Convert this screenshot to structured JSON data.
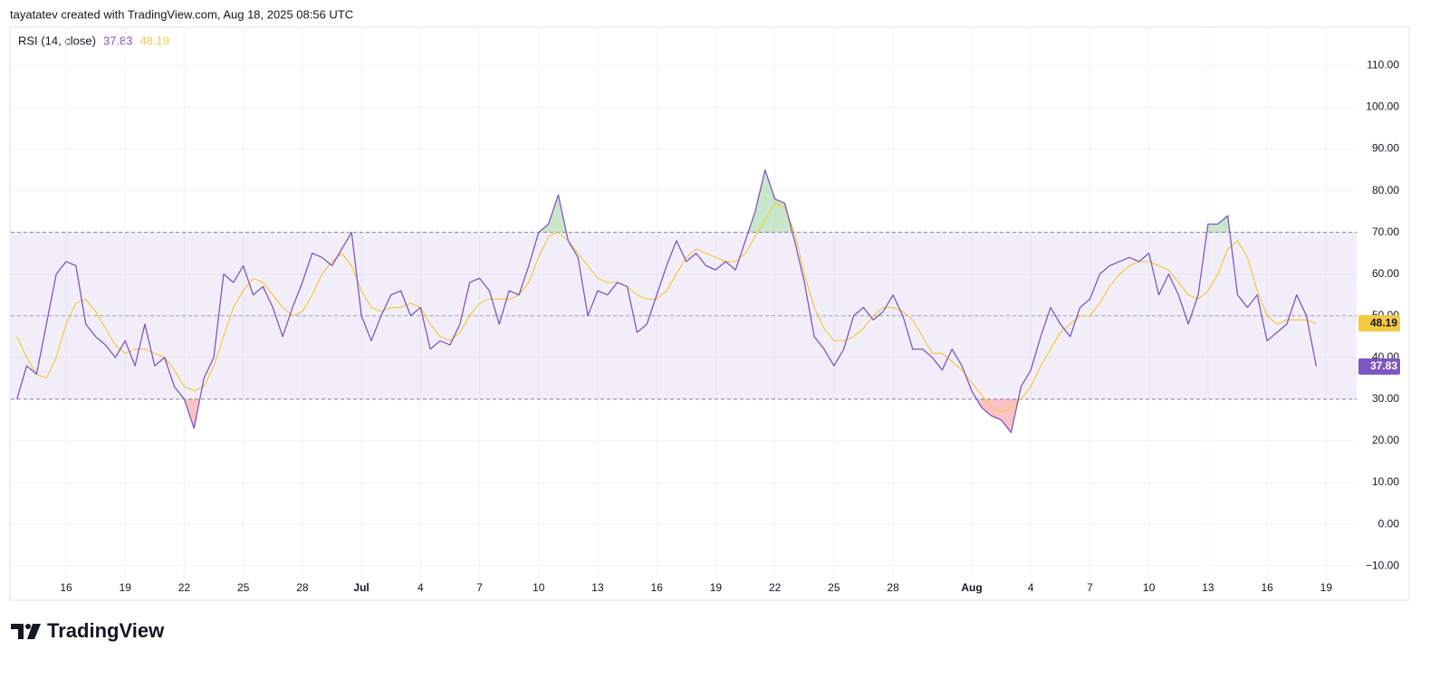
{
  "header": {
    "credit": "tayatatev created with TradingView.com, Aug 18, 2025 08:56 UTC"
  },
  "footer": {
    "brand": "TradingView"
  },
  "chart_data": {
    "type": "line",
    "indicator_label": "RSI (14, close)",
    "categories": [
      null,
      null,
      null,
      null,
      null,
      "16",
      null,
      null,
      null,
      null,
      null,
      "19",
      null,
      null,
      null,
      null,
      null,
      "22",
      null,
      null,
      null,
      null,
      null,
      "25",
      null,
      null,
      null,
      null,
      null,
      "28",
      null,
      null,
      null,
      null,
      null,
      "Jul",
      null,
      null,
      null,
      null,
      null,
      "4",
      null,
      null,
      null,
      null,
      null,
      "7",
      null,
      null,
      null,
      null,
      null,
      "10",
      null,
      null,
      null,
      null,
      null,
      "13",
      null,
      null,
      null,
      null,
      null,
      "16",
      null,
      null,
      null,
      null,
      null,
      "19",
      null,
      null,
      null,
      null,
      null,
      "22",
      null,
      null,
      null,
      null,
      null,
      "25",
      null,
      null,
      null,
      null,
      null,
      "28",
      null,
      null,
      null,
      null,
      null,
      null,
      null,
      "Aug",
      null,
      null,
      null,
      null,
      null,
      "4",
      null,
      null,
      null,
      null,
      null,
      "7",
      null,
      null,
      null,
      null,
      null,
      "10",
      null,
      null,
      null,
      null,
      null,
      "13",
      null,
      null,
      null,
      null,
      null,
      "16",
      null,
      null,
      null,
      null,
      null,
      "19"
    ],
    "series": [
      {
        "color": "#7e57c2",
        "values": [
          30,
          38,
          36,
          48,
          60,
          63,
          62,
          48,
          45,
          43,
          40,
          44,
          38,
          48,
          38,
          40,
          33,
          30,
          23,
          35,
          40,
          60,
          58,
          62,
          55,
          57,
          52,
          45,
          52,
          58,
          65,
          64,
          62,
          66,
          70,
          50,
          44,
          50,
          55,
          56,
          50,
          52,
          42,
          44,
          43,
          48,
          58,
          59,
          56,
          48,
          56,
          55,
          62,
          70,
          72,
          79,
          68,
          64,
          50,
          56,
          55,
          58,
          57,
          46,
          48,
          55,
          62,
          68,
          63,
          65,
          62,
          61,
          63,
          61,
          68,
          75,
          85,
          78,
          77,
          68,
          58,
          45,
          42,
          38,
          42,
          50,
          52,
          49,
          51,
          55,
          50,
          42,
          42,
          40,
          37,
          42,
          38,
          32,
          28,
          26,
          25,
          22,
          33,
          37,
          45,
          52,
          48,
          45,
          52,
          54,
          60,
          62,
          63,
          64,
          63,
          65,
          55,
          60,
          55,
          48,
          55,
          72,
          72,
          74,
          55,
          52,
          55,
          44,
          46,
          48,
          55,
          50,
          37.83,
          null
        ]
      },
      {
        "color": "#f5c842",
        "values": [
          45,
          40,
          36,
          35,
          40,
          48,
          53,
          54,
          51,
          47,
          43,
          41,
          42,
          42,
          41,
          40,
          37,
          33,
          32,
          33,
          38,
          45,
          52,
          56,
          59,
          58,
          55,
          52,
          50,
          51,
          55,
          60,
          63,
          65,
          62,
          56,
          52,
          51,
          52,
          52,
          53,
          52,
          48,
          45,
          44,
          46,
          50,
          53,
          54,
          54,
          54,
          55,
          58,
          64,
          69,
          70,
          68,
          65,
          62,
          59,
          58,
          58,
          57,
          55,
          54,
          54,
          56,
          60,
          64,
          66,
          65,
          64,
          63,
          63,
          65,
          69,
          73,
          77,
          76,
          70,
          60,
          52,
          47,
          44,
          44,
          45,
          47,
          50,
          52,
          52,
          51,
          49,
          45,
          41,
          41,
          39,
          37,
          34,
          31,
          28,
          27,
          28,
          30,
          33,
          38,
          42,
          46,
          48,
          50,
          50,
          53,
          57,
          60,
          62,
          63,
          63,
          62,
          61,
          58,
          55,
          54,
          56,
          60,
          66,
          68,
          64,
          56,
          50,
          48,
          49,
          49,
          49,
          48.19,
          null
        ]
      }
    ],
    "bands": {
      "upper": 70,
      "middle": 50,
      "lower": 30
    },
    "ylim": [
      -18,
      119
    ],
    "yticks": [
      {
        "value": -10,
        "label": "−10.00"
      },
      {
        "value": 0,
        "label": "0.00"
      },
      {
        "value": 10,
        "label": "10.00"
      },
      {
        "value": 20,
        "label": "20.00"
      },
      {
        "value": 30,
        "label": "30.00"
      },
      {
        "value": 40,
        "label": "40.00"
      },
      {
        "value": 50,
        "label": "50.00"
      },
      {
        "value": 60,
        "label": "60.00"
      },
      {
        "value": 70,
        "label": "70.00"
      },
      {
        "value": 80,
        "label": "80.00"
      },
      {
        "value": 90,
        "label": "90.00"
      },
      {
        "value": 100,
        "label": "100.00"
      },
      {
        "value": 110,
        "label": "110.00"
      }
    ],
    "grid": true
  }
}
